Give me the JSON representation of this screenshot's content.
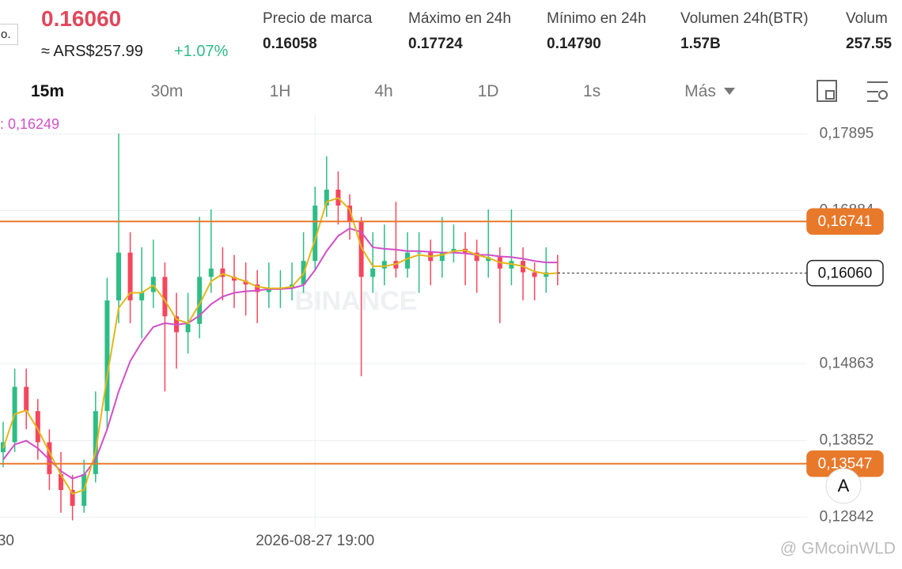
{
  "header": {
    "cut_label": "o.",
    "price": "0.16060",
    "fiat": "≈ ARS$257.99",
    "change": "+1.07%",
    "stats": [
      {
        "label": "Precio de marca",
        "value": "0.16058"
      },
      {
        "label": "Máximo en 24h",
        "value": "0.17724"
      },
      {
        "label": "Mínimo en 24h",
        "value": "0.14790"
      },
      {
        "label": "Volumen 24h(BTR)",
        "value": "1.57B"
      },
      {
        "label": "Volum",
        "value": "257.55"
      }
    ]
  },
  "tabs": [
    "15m",
    "30m",
    "1H",
    "4h",
    "1D",
    "1s",
    "Más"
  ],
  "watermark": "@ GMcoinWLD",
  "brand": "BINANCE",
  "button": "A",
  "chart_data": {
    "type": "candlestick",
    "ma_label": ": 0,16249",
    "ylim": [
      0.127,
      0.1815
    ],
    "yticks": [
      {
        "value": 0.17895,
        "label": "0,17895"
      },
      {
        "value": 0.16884,
        "label": "0,16884"
      },
      {
        "value": 0.14863,
        "label": "0,14863"
      },
      {
        "value": 0.13852,
        "label": "0,13852"
      },
      {
        "value": 0.12842,
        "label": "0,12842"
      }
    ],
    "grid": true,
    "up_color": "#2ebd85",
    "down_color": "#f6465d",
    "price_lines": [
      {
        "value": 0.16741,
        "label": "0,16741",
        "color": "#e8792b"
      },
      {
        "value": 0.1606,
        "label": "0,16060",
        "color": "#222222"
      },
      {
        "value": 0.13547,
        "label": "0,13547",
        "color": "#e8792b"
      }
    ],
    "categories": [
      "30",
      null,
      null,
      null,
      null,
      null,
      null,
      null,
      null,
      null,
      null,
      null,
      null,
      null,
      null,
      null,
      null,
      null,
      null,
      null,
      null,
      null,
      null,
      null,
      null,
      null,
      null,
      "2026-08-27 19:00",
      null,
      null,
      null,
      null,
      null,
      null,
      null,
      null,
      null,
      null,
      null,
      null,
      null,
      null,
      null,
      null,
      null,
      null,
      null,
      null,
      null
    ],
    "candles": [
      [
        0.137,
        0.141,
        0.135,
        0.1383
      ],
      [
        0.1383,
        0.148,
        0.137,
        0.1456
      ],
      [
        0.1456,
        0.148,
        0.14,
        0.1424
      ],
      [
        0.1424,
        0.144,
        0.136,
        0.1383
      ],
      [
        0.1383,
        0.14,
        0.132,
        0.1341
      ],
      [
        0.1341,
        0.137,
        0.129,
        0.132
      ],
      [
        0.132,
        0.134,
        0.128,
        0.1299
      ],
      [
        0.1299,
        0.136,
        0.129,
        0.1341
      ],
      [
        0.1341,
        0.145,
        0.133,
        0.1424
      ],
      [
        0.1424,
        0.16,
        0.14,
        0.157
      ],
      [
        0.157,
        0.179,
        0.154,
        0.1633
      ],
      [
        0.1633,
        0.166,
        0.154,
        0.157
      ],
      [
        0.157,
        0.164,
        0.152,
        0.1581
      ],
      [
        0.1581,
        0.165,
        0.156,
        0.1601
      ],
      [
        0.1601,
        0.162,
        0.145,
        0.1549
      ],
      [
        0.1549,
        0.158,
        0.148,
        0.1528
      ],
      [
        0.1528,
        0.158,
        0.15,
        0.1539
      ],
      [
        0.1539,
        0.168,
        0.152,
        0.1601
      ],
      [
        0.1601,
        0.169,
        0.158,
        0.1612
      ],
      [
        0.1612,
        0.164,
        0.157,
        0.1601
      ],
      [
        0.1601,
        0.163,
        0.156,
        0.1596
      ],
      [
        0.1596,
        0.162,
        0.155,
        0.1591
      ],
      [
        0.1591,
        0.161,
        0.154,
        0.1581
      ],
      [
        0.1581,
        0.162,
        0.156,
        0.1586
      ],
      [
        0.1586,
        0.161,
        0.156,
        0.1586
      ],
      [
        0.1586,
        0.162,
        0.157,
        0.1591
      ],
      [
        0.1591,
        0.166,
        0.158,
        0.1622
      ],
      [
        0.1622,
        0.172,
        0.161,
        0.1695
      ],
      [
        0.1695,
        0.176,
        0.168,
        0.1716
      ],
      [
        0.1716,
        0.174,
        0.167,
        0.1695
      ],
      [
        0.1695,
        0.171,
        0.165,
        0.1674
      ],
      [
        0.1674,
        0.168,
        0.147,
        0.1601
      ],
      [
        0.1601,
        0.166,
        0.158,
        0.1612
      ],
      [
        0.1612,
        0.167,
        0.159,
        0.1622
      ],
      [
        0.1622,
        0.17,
        0.16,
        0.1612
      ],
      [
        0.1612,
        0.166,
        0.16,
        0.1633
      ],
      [
        0.1633,
        0.166,
        0.158,
        0.1633
      ],
      [
        0.1633,
        0.165,
        0.159,
        0.1622
      ],
      [
        0.1622,
        0.168,
        0.16,
        0.1633
      ],
      [
        0.1633,
        0.167,
        0.162,
        0.1638
      ],
      [
        0.1638,
        0.166,
        0.159,
        0.1633
      ],
      [
        0.1633,
        0.165,
        0.158,
        0.1622
      ],
      [
        0.1622,
        0.169,
        0.16,
        0.1627
      ],
      [
        0.1627,
        0.164,
        0.154,
        0.1612
      ],
      [
        0.1612,
        0.169,
        0.159,
        0.1622
      ],
      [
        0.1622,
        0.164,
        0.157,
        0.1607
      ],
      [
        0.1607,
        0.162,
        0.157,
        0.1601
      ],
      [
        0.1601,
        0.164,
        0.158,
        0.1607
      ],
      [
        0.1607,
        0.163,
        0.159,
        0.1606
      ]
    ],
    "series": [
      {
        "color": "#d04fc8",
        "values": [
          0.136,
          0.138,
          0.1385,
          0.1375,
          0.136,
          0.1345,
          0.1335,
          0.134,
          0.136,
          0.14,
          0.145,
          0.149,
          0.1515,
          0.1535,
          0.154,
          0.1538,
          0.154,
          0.155,
          0.1565,
          0.1575,
          0.158,
          0.1582,
          0.1583,
          0.1585,
          0.1585,
          0.1586,
          0.159,
          0.161,
          0.1635,
          0.1655,
          0.1665,
          0.166,
          0.164,
          0.1638,
          0.1637,
          0.1635,
          0.1635,
          0.1634,
          0.1633,
          0.1633,
          0.1632,
          0.163,
          0.163,
          0.1628,
          0.1627,
          0.1625,
          0.1622,
          0.162,
          0.162
        ]
      },
      {
        "color": "#e2b71a",
        "values": [
          0.1375,
          0.142,
          0.1425,
          0.14,
          0.137,
          0.134,
          0.1315,
          0.132,
          0.137,
          0.147,
          0.156,
          0.158,
          0.158,
          0.159,
          0.157,
          0.1545,
          0.154,
          0.1565,
          0.1595,
          0.1605,
          0.16,
          0.1595,
          0.1588,
          0.1586,
          0.1586,
          0.1588,
          0.1605,
          0.165,
          0.17,
          0.1705,
          0.169,
          0.164,
          0.1615,
          0.1615,
          0.1618,
          0.1625,
          0.163,
          0.1628,
          0.163,
          0.1635,
          0.1636,
          0.163,
          0.1626,
          0.162,
          0.1618,
          0.1615,
          0.1608,
          0.1605,
          0.1606
        ]
      }
    ]
  }
}
